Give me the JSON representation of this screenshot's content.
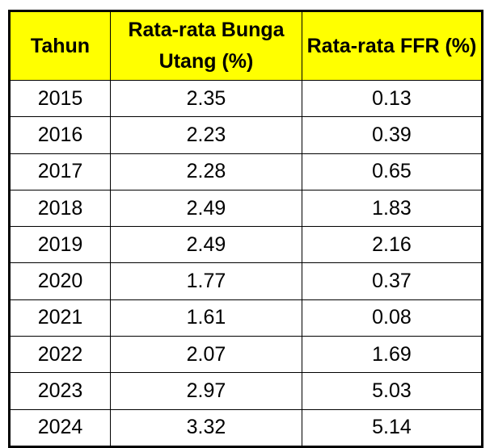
{
  "table": {
    "header": {
      "col_tahun": "Tahun",
      "col_bunga": "Rata-rata Bunga Utang (%)",
      "col_ffr": "Rata-rata FFR (%)"
    },
    "rows": [
      {
        "tahun": "2015",
        "bunga": "2.35",
        "ffr": "0.13"
      },
      {
        "tahun": "2016",
        "bunga": "2.23",
        "ffr": "0.39"
      },
      {
        "tahun": "2017",
        "bunga": "2.28",
        "ffr": "0.65"
      },
      {
        "tahun": "2018",
        "bunga": "2.49",
        "ffr": "1.83"
      },
      {
        "tahun": "2019",
        "bunga": "2.49",
        "ffr": "2.16"
      },
      {
        "tahun": "2020",
        "bunga": "1.77",
        "ffr": "0.37"
      },
      {
        "tahun": "2021",
        "bunga": "1.61",
        "ffr": "0.08"
      },
      {
        "tahun": "2022",
        "bunga": "2.07",
        "ffr": "1.69"
      },
      {
        "tahun": "2023",
        "bunga": "2.97",
        "ffr": "5.03"
      },
      {
        "tahun": "2024",
        "bunga": "3.32",
        "ffr": "5.14"
      }
    ],
    "colors": {
      "header_bg": "#FFFF00",
      "border": "#000000",
      "text": "#000000"
    }
  }
}
